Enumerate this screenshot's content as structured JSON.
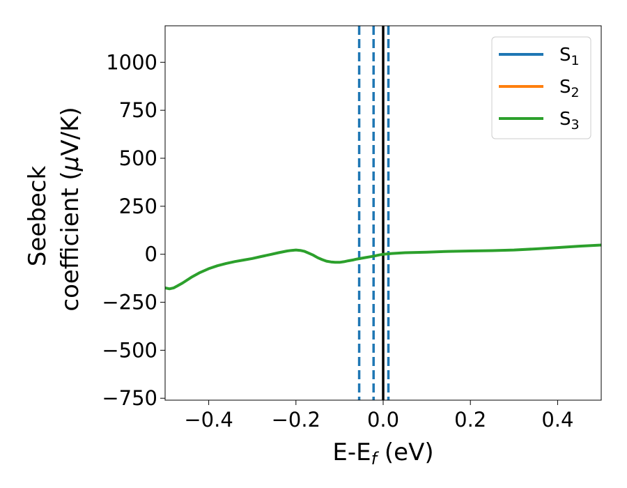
{
  "chart_data": {
    "type": "line",
    "title": "",
    "xlabel": {
      "main": "E-E",
      "sub": "f",
      "unit": " (eV)"
    },
    "ylabel": {
      "line1": "Seebeck",
      "line2": "coefficient  (",
      "mu": "μ",
      "unit": "V/K)"
    },
    "xlim": [
      -0.5,
      0.5
    ],
    "ylim": [
      -760,
      1190
    ],
    "xticks": [
      -0.4,
      -0.2,
      0.0,
      0.2,
      0.4
    ],
    "xtick_labels": [
      "−0.4",
      "−0.2",
      "0.0",
      "0.2",
      "0.4"
    ],
    "yticks": [
      -750,
      -500,
      -250,
      0,
      250,
      500,
      750,
      1000
    ],
    "ytick_labels": [
      "−750",
      "−500",
      "−250",
      "0",
      "250",
      "500",
      "750",
      "1000"
    ],
    "grid": false,
    "legend_position": "top-right",
    "series": [
      {
        "name": "S",
        "sub": "1",
        "color": "#1f77b4"
      },
      {
        "name": "S",
        "sub": "2",
        "color": "#ff7f0e"
      },
      {
        "name": "S",
        "sub": "3",
        "color": "#2ca02c"
      }
    ],
    "curve": {
      "x": [
        -0.5,
        -0.49,
        -0.48,
        -0.46,
        -0.44,
        -0.42,
        -0.4,
        -0.38,
        -0.36,
        -0.34,
        -0.32,
        -0.3,
        -0.28,
        -0.26,
        -0.24,
        -0.22,
        -0.21,
        -0.2,
        -0.19,
        -0.18,
        -0.17,
        -0.16,
        -0.15,
        -0.14,
        -0.13,
        -0.12,
        -0.11,
        -0.1,
        -0.09,
        -0.08,
        -0.07,
        -0.06,
        -0.05,
        -0.04,
        -0.03,
        -0.02,
        -0.01,
        0.0,
        0.02,
        0.05,
        0.1,
        0.15,
        0.2,
        0.25,
        0.3,
        0.35,
        0.4,
        0.45,
        0.5
      ],
      "y": [
        -175,
        -180,
        -175,
        -150,
        -120,
        -95,
        -75,
        -60,
        -48,
        -38,
        -30,
        -22,
        -12,
        -2,
        8,
        17,
        20,
        22,
        20,
        15,
        5,
        -5,
        -18,
        -28,
        -36,
        -40,
        -42,
        -42,
        -39,
        -34,
        -30,
        -25,
        -21,
        -17,
        -13,
        -9,
        -4,
        0,
        4,
        8,
        11,
        15,
        17,
        19,
        22,
        28,
        35,
        42,
        48
      ],
      "color": "#2ca02c"
    },
    "vlines": [
      {
        "x": -0.055,
        "style": "dashed",
        "color": "#1f77b4"
      },
      {
        "x": -0.022,
        "style": "dashed",
        "color": "#1f77b4"
      },
      {
        "x": 0.0,
        "style": "solid",
        "color": "#000000"
      },
      {
        "x": 0.012,
        "style": "dashed",
        "color": "#1f77b4"
      }
    ]
  }
}
